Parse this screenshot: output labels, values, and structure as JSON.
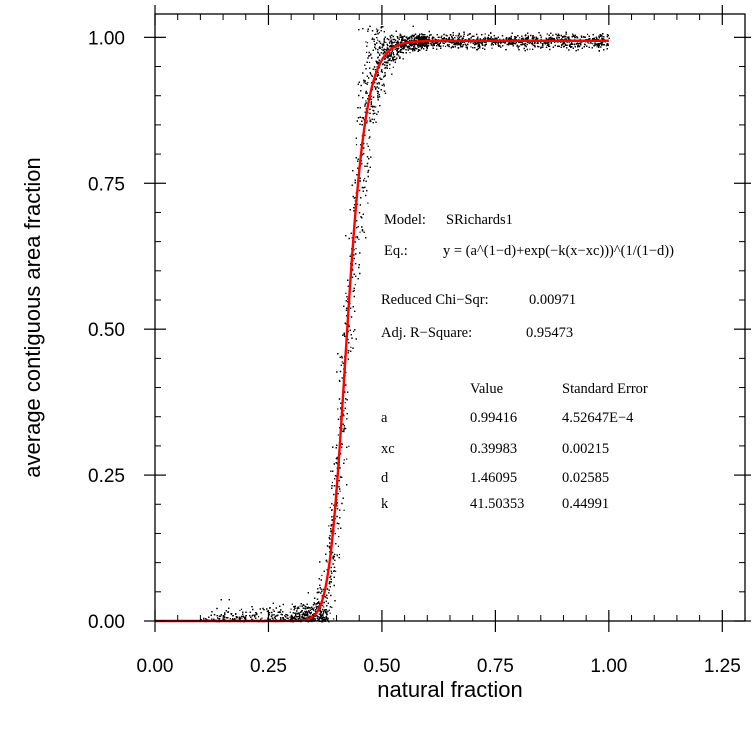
{
  "chart_data": {
    "type": "scatter",
    "title": "",
    "xlabel": "natural fraction",
    "ylabel": "average contiguous area fraction",
    "xlim": [
      0.0,
      1.3
    ],
    "ylim": [
      0.0,
      1.04
    ],
    "xticks": [
      0.0,
      0.25,
      0.5,
      0.75,
      1.0,
      1.25
    ],
    "xtick_labels": [
      "0.00",
      "0.25",
      "0.50",
      "0.75",
      "1.00",
      "1.25"
    ],
    "yticks": [
      0.0,
      0.25,
      0.5,
      0.75,
      1.0
    ],
    "ytick_labels": [
      "0.00",
      "0.25",
      "0.50",
      "0.75",
      "1.00"
    ],
    "grid": false,
    "series": [
      {
        "kind": "scatter",
        "color": "#000000",
        "x_range": [
          0.1,
          1.0
        ]
      },
      {
        "kind": "line",
        "color": "#ff0000",
        "model": "SRichards1",
        "x_range": [
          0.0,
          1.0
        ],
        "params": {
          "a": 0.99416,
          "xc": 0.39983,
          "d": 1.46095,
          "k": 41.50353
        }
      }
    ],
    "annotation": {
      "model_label": "Model:",
      "model_value": "SRichards1",
      "eq_label": "Eq.:",
      "eq_value": "y = (a^(1−d)+exp(−k(x−xc)))^(1/(1−d))",
      "chisq_label": "Reduced Chi−Sqr:",
      "chisq_value": "0.00971",
      "r2_label": "Adj. R−Square:",
      "r2_value": "0.95473",
      "table_headers": [
        "Value",
        "Standard Error"
      ],
      "table_rows": [
        {
          "param": "a",
          "value": "0.99416",
          "error": "4.52647E−4"
        },
        {
          "param": "xc",
          "value": "0.39983",
          "error": "0.00215"
        },
        {
          "param": "d",
          "value": "1.46095",
          "error": "0.02585"
        },
        {
          "param": "k",
          "value": "41.50353",
          "error": "0.44991"
        }
      ]
    }
  }
}
